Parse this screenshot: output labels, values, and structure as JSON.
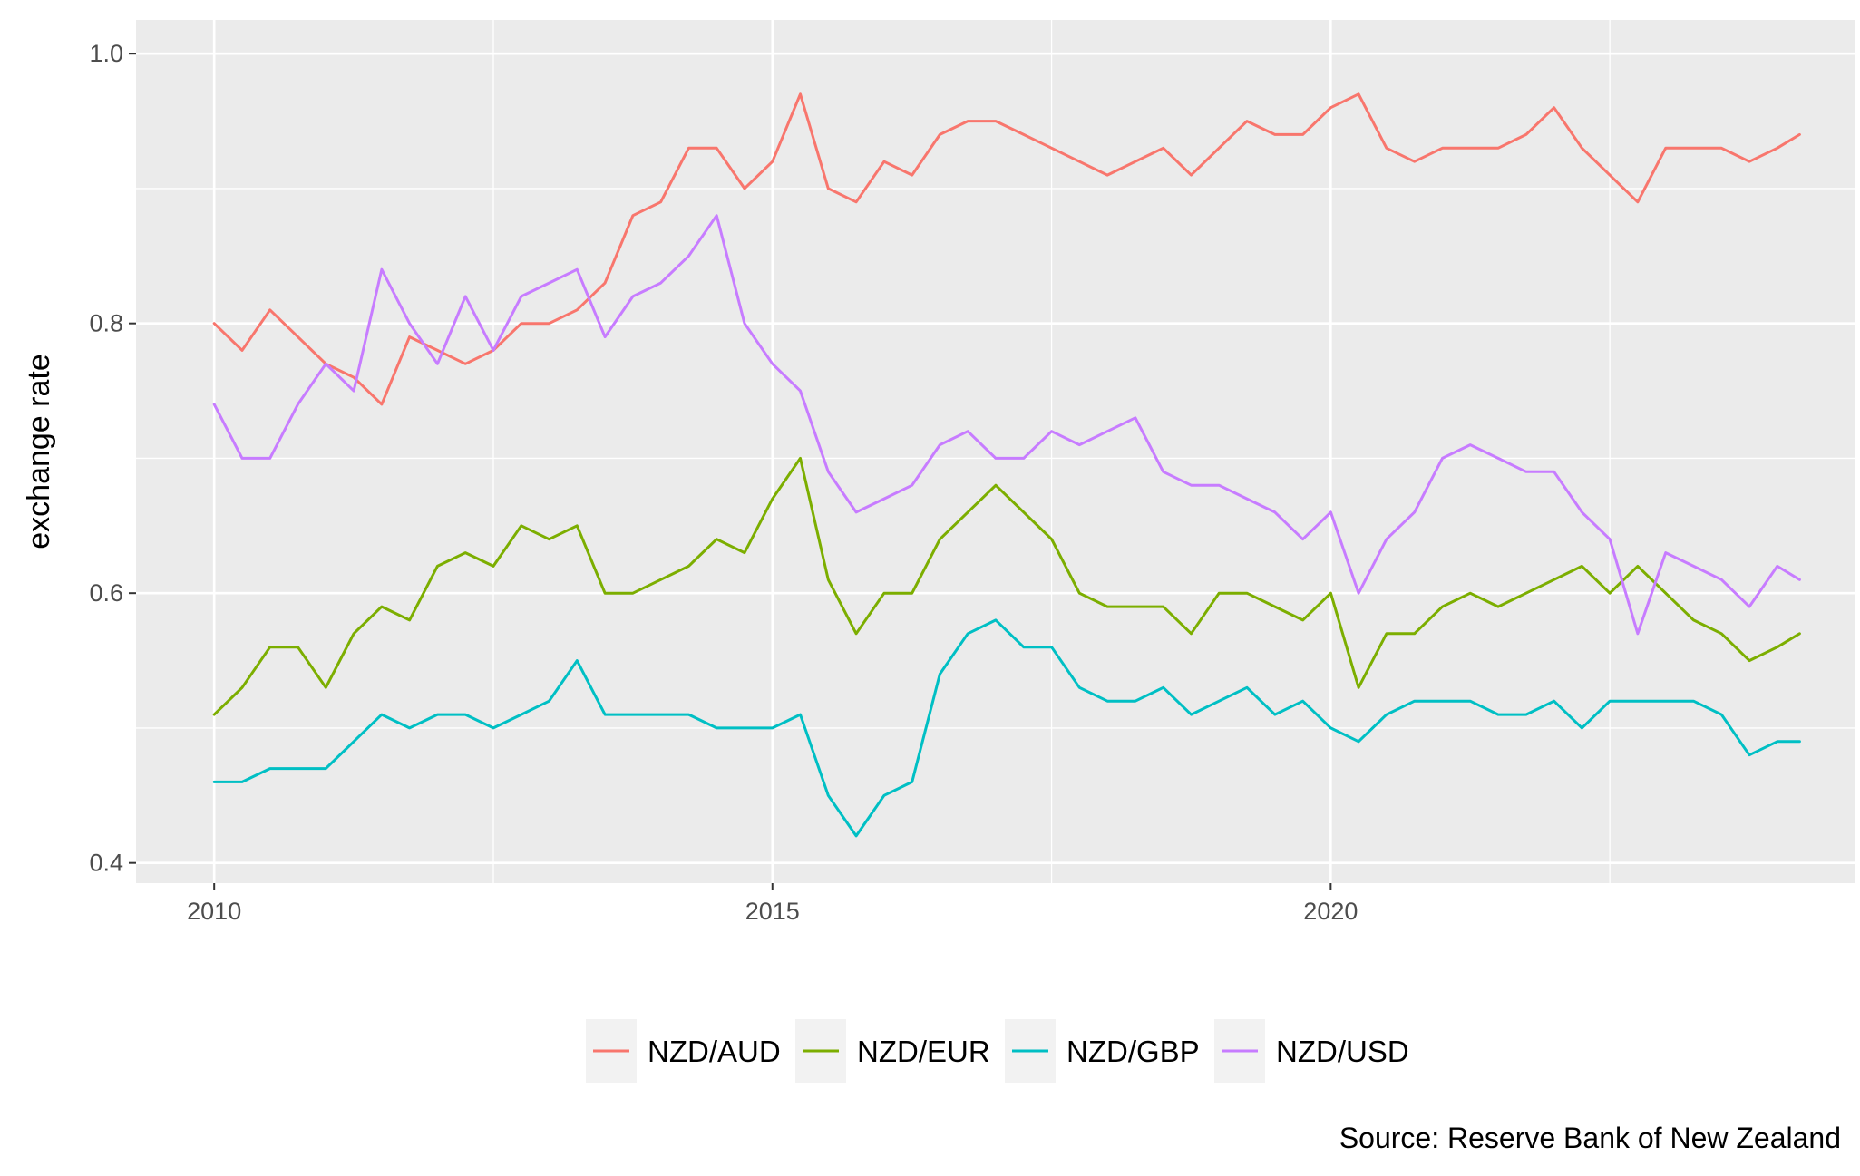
{
  "chart_data": {
    "type": "line",
    "title": "",
    "xlabel": "",
    "ylabel": "exchange rate",
    "caption": "Source: Reserve Bank of New Zealand",
    "xlim": [
      2009.3,
      2024.7
    ],
    "ylim": [
      0.385,
      1.025
    ],
    "x_ticks": [
      2010,
      2015,
      2020
    ],
    "x_tick_labels": [
      "2010",
      "2015",
      "2020"
    ],
    "y_ticks": [
      0.4,
      0.6,
      0.8,
      1.0
    ],
    "y_tick_labels": [
      "0.4",
      "0.6",
      "0.8",
      "1.0"
    ],
    "grid": true,
    "legend_position": "bottom",
    "x": [
      2010.0,
      2010.25,
      2010.5,
      2010.75,
      2011.0,
      2011.25,
      2011.5,
      2011.75,
      2012.0,
      2012.25,
      2012.5,
      2012.75,
      2013.0,
      2013.25,
      2013.5,
      2013.75,
      2014.0,
      2014.25,
      2014.5,
      2014.75,
      2015.0,
      2015.25,
      2015.5,
      2015.75,
      2016.0,
      2016.25,
      2016.5,
      2016.75,
      2017.0,
      2017.25,
      2017.5,
      2017.75,
      2018.0,
      2018.25,
      2018.5,
      2018.75,
      2019.0,
      2019.25,
      2019.5,
      2019.75,
      2020.0,
      2020.25,
      2020.5,
      2020.75,
      2021.0,
      2021.25,
      2021.5,
      2021.75,
      2022.0,
      2022.25,
      2022.5,
      2022.75,
      2023.0,
      2023.25,
      2023.5,
      2023.75,
      2024.0,
      2024.2
    ],
    "series": [
      {
        "name": "NZD/AUD",
        "color": "#F8766D",
        "values": [
          0.8,
          0.78,
          0.81,
          0.79,
          0.77,
          0.76,
          0.74,
          0.79,
          0.78,
          0.77,
          0.78,
          0.8,
          0.8,
          0.81,
          0.83,
          0.88,
          0.89,
          0.93,
          0.93,
          0.9,
          0.92,
          0.97,
          0.9,
          0.89,
          0.92,
          0.91,
          0.94,
          0.95,
          0.95,
          0.94,
          0.93,
          0.92,
          0.91,
          0.92,
          0.93,
          0.91,
          0.93,
          0.95,
          0.94,
          0.94,
          0.96,
          0.97,
          0.93,
          0.92,
          0.93,
          0.93,
          0.93,
          0.94,
          0.96,
          0.93,
          0.91,
          0.89,
          0.93,
          0.93,
          0.93,
          0.92,
          0.93,
          0.94
        ]
      },
      {
        "name": "NZD/EUR",
        "color": "#7CAE00",
        "values": [
          0.51,
          0.53,
          0.56,
          0.56,
          0.53,
          0.57,
          0.59,
          0.58,
          0.62,
          0.63,
          0.62,
          0.65,
          0.64,
          0.65,
          0.6,
          0.6,
          0.61,
          0.62,
          0.64,
          0.63,
          0.67,
          0.7,
          0.61,
          0.57,
          0.6,
          0.6,
          0.64,
          0.66,
          0.68,
          0.66,
          0.64,
          0.6,
          0.59,
          0.59,
          0.59,
          0.57,
          0.6,
          0.6,
          0.59,
          0.58,
          0.6,
          0.53,
          0.57,
          0.57,
          0.59,
          0.6,
          0.59,
          0.6,
          0.61,
          0.62,
          0.6,
          0.62,
          0.6,
          0.58,
          0.57,
          0.55,
          0.56,
          0.57
        ]
      },
      {
        "name": "NZD/GBP",
        "color": "#00BFC4",
        "values": [
          0.46,
          0.46,
          0.47,
          0.47,
          0.47,
          0.49,
          0.51,
          0.5,
          0.51,
          0.51,
          0.5,
          0.51,
          0.52,
          0.55,
          0.51,
          0.51,
          0.51,
          0.51,
          0.5,
          0.5,
          0.5,
          0.51,
          0.45,
          0.42,
          0.45,
          0.46,
          0.54,
          0.57,
          0.58,
          0.56,
          0.56,
          0.53,
          0.52,
          0.52,
          0.53,
          0.51,
          0.52,
          0.53,
          0.51,
          0.52,
          0.5,
          0.49,
          0.51,
          0.52,
          0.52,
          0.52,
          0.51,
          0.51,
          0.52,
          0.5,
          0.52,
          0.52,
          0.52,
          0.52,
          0.51,
          0.48,
          0.49,
          0.49
        ]
      },
      {
        "name": "NZD/USD",
        "color": "#C77CFF",
        "values": [
          0.74,
          0.7,
          0.7,
          0.74,
          0.77,
          0.75,
          0.84,
          0.8,
          0.77,
          0.82,
          0.78,
          0.82,
          0.83,
          0.84,
          0.79,
          0.82,
          0.83,
          0.85,
          0.88,
          0.8,
          0.77,
          0.75,
          0.69,
          0.66,
          0.67,
          0.68,
          0.71,
          0.72,
          0.7,
          0.7,
          0.72,
          0.71,
          0.72,
          0.73,
          0.69,
          0.68,
          0.68,
          0.67,
          0.66,
          0.64,
          0.66,
          0.6,
          0.64,
          0.66,
          0.7,
          0.71,
          0.7,
          0.69,
          0.69,
          0.66,
          0.64,
          0.57,
          0.63,
          0.62,
          0.61,
          0.59,
          0.62,
          0.61
        ]
      }
    ]
  }
}
